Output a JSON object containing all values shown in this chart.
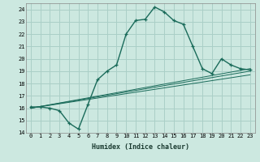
{
  "xlabel": "Humidex (Indice chaleur)",
  "ylabel": "",
  "xlim": [
    -0.5,
    23.5
  ],
  "ylim": [
    14,
    24.5
  ],
  "yticks": [
    14,
    15,
    16,
    17,
    18,
    19,
    20,
    21,
    22,
    23,
    24
  ],
  "xticks": [
    0,
    1,
    2,
    3,
    4,
    5,
    6,
    7,
    8,
    9,
    10,
    11,
    12,
    13,
    14,
    15,
    16,
    17,
    18,
    19,
    20,
    21,
    22,
    23
  ],
  "bg_color": "#cce8e0",
  "grid_color": "#aacfc7",
  "line_color": "#1a6b5a",
  "main_curve": [
    16.1,
    16.1,
    16.0,
    15.8,
    14.8,
    14.3,
    16.3,
    18.3,
    19.0,
    19.5,
    22.0,
    23.1,
    23.2,
    24.2,
    23.8,
    23.1,
    22.8,
    21.0,
    19.2,
    18.8,
    20.0,
    19.5,
    19.2,
    19.1
  ],
  "line2_x": [
    0,
    23
  ],
  "line2_y": [
    16.0,
    18.7
  ],
  "line3_x": [
    0,
    23
  ],
  "line3_y": [
    16.0,
    19.0
  ],
  "line4_x": [
    0,
    23
  ],
  "line4_y": [
    16.0,
    19.2
  ]
}
